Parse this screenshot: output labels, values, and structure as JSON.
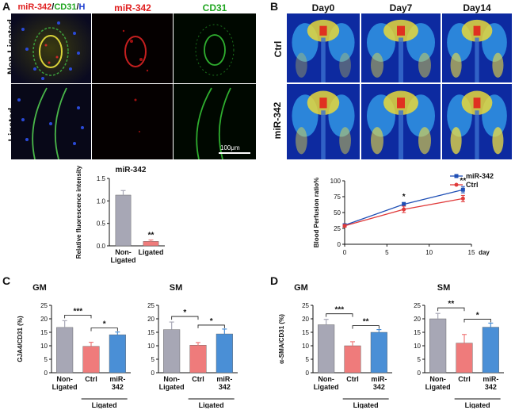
{
  "panel_labels": {
    "a": "A",
    "b": "B",
    "c": "C",
    "d": "D"
  },
  "panelA": {
    "col_headers": {
      "merge_parts": [
        "miR-342",
        "/",
        "CD31",
        "/",
        "H"
      ],
      "mir": "miR-342",
      "cd31": "CD31"
    },
    "row_labels": [
      "Non-Ligated",
      "Ligated"
    ],
    "scale_bar": "100μm",
    "colors": {
      "red": "#e02020",
      "green": "#1fa51f",
      "blue": "#1f3fd0"
    }
  },
  "panelB": {
    "col_headers": [
      "Day0",
      "Day7",
      "Day14"
    ],
    "row_labels": [
      "Ctrl",
      "miR-342"
    ]
  },
  "chart_data": [
    {
      "id": "fluor",
      "type": "bar",
      "title": "miR-342",
      "ylabel": "Relative fluorescence intensity",
      "ylim": [
        0,
        1.5
      ],
      "yticks": [
        "0.0",
        "0.5",
        "1.0",
        "1.5"
      ],
      "categories": [
        "Non-Ligated",
        "Ligated"
      ],
      "category_lines": [
        [
          "Non-",
          "Ligated"
        ],
        [
          "Ligated"
        ]
      ],
      "values": [
        1.13,
        0.1
      ],
      "errors": [
        0.1,
        0.03
      ],
      "colors": [
        "#a7a7b5",
        "#ef7b7b"
      ],
      "annotations": [
        {
          "index": 1,
          "text": "**"
        }
      ]
    },
    {
      "id": "perfusion",
      "type": "line",
      "ylabel": "Blood Perfusion ratio%",
      "xlabel": "day",
      "x": [
        0,
        7,
        14
      ],
      "xlim": [
        0,
        15
      ],
      "ylim": [
        0,
        100
      ],
      "xticks": [
        "0",
        "5",
        "10",
        "15"
      ],
      "yticks": [
        "0",
        "25",
        "50",
        "75",
        "100"
      ],
      "series": [
        {
          "name": "miR-342",
          "values": [
            30,
            63,
            86
          ],
          "errors": [
            2,
            3,
            5
          ],
          "color": "#1f4fb5"
        },
        {
          "name": "Ctrl",
          "values": [
            29,
            55,
            72
          ],
          "errors": [
            2,
            5,
            5
          ],
          "color": "#e03a3a"
        }
      ],
      "legend": "top-right",
      "annotations": [
        {
          "x": 7,
          "text": "*"
        },
        {
          "x": 14,
          "text": "**"
        }
      ]
    },
    {
      "id": "c_gm",
      "type": "bar",
      "title": "GM",
      "ylabel": "GJA4/CD31 (%)",
      "ylim": [
        0,
        25
      ],
      "yticks": [
        "0",
        "5",
        "10",
        "15",
        "20",
        "25"
      ],
      "categories": [
        "Non-Ligated",
        "Ctrl",
        "miR-342"
      ],
      "category_lines": [
        [
          "Non-",
          "Ligated"
        ],
        [
          "Ctrl"
        ],
        [
          "miR-",
          "342"
        ]
      ],
      "values": [
        16.8,
        9.8,
        14.1
      ],
      "errors": [
        2.5,
        1.5,
        1.0
      ],
      "colors": [
        "#a7a7b5",
        "#ef7b7b",
        "#4a8fd6"
      ],
      "brackets": [
        {
          "from": 0,
          "to": 1,
          "text": "***",
          "level": 0
        },
        {
          "from": 1,
          "to": 2,
          "text": "*",
          "level": 1
        }
      ],
      "group_label": "Ligated"
    },
    {
      "id": "c_sm",
      "type": "bar",
      "title": "SM",
      "ylabel": "",
      "ylim": [
        0,
        25
      ],
      "yticks": [
        "0",
        "5",
        "10",
        "15",
        "20",
        "25"
      ],
      "categories": [
        "Non-Ligated",
        "Ctrl",
        "miR-342"
      ],
      "category_lines": [
        [
          "Non-",
          "Ligated"
        ],
        [
          "Ctrl"
        ],
        [
          "miR-",
          "342"
        ]
      ],
      "values": [
        16.0,
        10.2,
        14.4
      ],
      "errors": [
        2.8,
        1.0,
        1.8
      ],
      "colors": [
        "#a7a7b5",
        "#ef7b7b",
        "#4a8fd6"
      ],
      "brackets": [
        {
          "from": 0,
          "to": 1,
          "text": "*",
          "level": 0
        },
        {
          "from": 1,
          "to": 2,
          "text": "*",
          "level": 1
        }
      ],
      "group_label": "Ligated"
    },
    {
      "id": "d_gm",
      "type": "bar",
      "title": "GM",
      "ylabel": "α-SMA/CD31 (%)",
      "ylim": [
        0,
        25
      ],
      "yticks": [
        "0",
        "5",
        "10",
        "15",
        "20",
        "25"
      ],
      "categories": [
        "Non-Ligated",
        "Ctrl",
        "miR-342"
      ],
      "category_lines": [
        [
          "Non-",
          "Ligated"
        ],
        [
          "Ctrl"
        ],
        [
          "miR-",
          "342"
        ]
      ],
      "values": [
        17.8,
        10.0,
        15.0
      ],
      "errors": [
        2.0,
        1.5,
        1.0
      ],
      "colors": [
        "#a7a7b5",
        "#ef7b7b",
        "#4a8fd6"
      ],
      "brackets": [
        {
          "from": 0,
          "to": 1,
          "text": "***",
          "level": 0
        },
        {
          "from": 1,
          "to": 2,
          "text": "**",
          "level": 1
        }
      ],
      "group_label": "Ligated"
    },
    {
      "id": "d_sm",
      "type": "bar",
      "title": "SM",
      "ylabel": "",
      "ylim": [
        0,
        25
      ],
      "yticks": [
        "0",
        "5",
        "10",
        "15",
        "20",
        "25"
      ],
      "categories": [
        "Non-Ligated",
        "Ctrl",
        "miR-342"
      ],
      "category_lines": [
        [
          "Non-",
          "Ligated"
        ],
        [
          "Ctrl"
        ],
        [
          "miR-",
          "342"
        ]
      ],
      "values": [
        20.0,
        11.0,
        16.9
      ],
      "errors": [
        2.0,
        3.2,
        1.5
      ],
      "colors": [
        "#a7a7b5",
        "#ef7b7b",
        "#4a8fd6"
      ],
      "brackets": [
        {
          "from": 0,
          "to": 1,
          "text": "**",
          "level": 0
        },
        {
          "from": 1,
          "to": 2,
          "text": "*",
          "level": 1
        }
      ],
      "group_label": "Ligated"
    }
  ]
}
